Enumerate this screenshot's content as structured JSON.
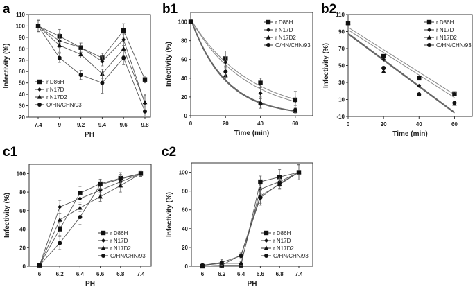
{
  "legend_labels": [
    "r D86H",
    "r N17D",
    "r N17D2",
    "O/HN/CHN/93"
  ],
  "chart_data": [
    {
      "panel": "a",
      "type": "line",
      "xmode": "category",
      "categories": [
        "7.4",
        "9",
        "9.2",
        "9.4",
        "9.6",
        "9.8"
      ],
      "xlabel": "PH",
      "ylabel": "Infectivity (%)",
      "ylim": [
        20,
        110
      ],
      "yticks": [
        20,
        30,
        40,
        50,
        60,
        70,
        80,
        90,
        100,
        110
      ],
      "legend": "bottom-left",
      "series": [
        {
          "name": "r D86H",
          "marker": "square",
          "values": [
            100,
            91,
            81,
            72,
            96,
            53
          ],
          "errors": [
            5,
            6,
            4,
            4,
            6,
            3
          ]
        },
        {
          "name": "r N17D",
          "marker": "diamond",
          "values": [
            100,
            87,
            81,
            69,
            88,
            32
          ],
          "errors": [
            5,
            6,
            4,
            4,
            5,
            7
          ]
        },
        {
          "name": "r N17D2",
          "marker": "triangle",
          "values": [
            100,
            83,
            75,
            58,
            80,
            33
          ],
          "errors": [
            5,
            6,
            3,
            4,
            6,
            7
          ]
        },
        {
          "name": "O/HN/CHN/93",
          "marker": "circle",
          "values": [
            100,
            72,
            57,
            50,
            72,
            25
          ],
          "errors": [
            5,
            4,
            4,
            9,
            6,
            4
          ]
        }
      ]
    },
    {
      "panel": "b1",
      "type": "scatter",
      "xmode": "numeric",
      "x": [
        0,
        20,
        40,
        60
      ],
      "xlim": [
        0,
        70
      ],
      "xticks": [
        0,
        20,
        40,
        60
      ],
      "xlabel": "Time (min)",
      "ylabel": "Infectivity (%)",
      "ylim": [
        0,
        110
      ],
      "yticks": [
        0,
        20,
        40,
        60,
        80,
        100
      ],
      "legend": "top-right",
      "fit": "exponential",
      "series": [
        {
          "name": "r D86H",
          "marker": "square",
          "values": [
            100,
            61,
            35,
            17
          ],
          "errors": [
            0,
            8,
            5,
            9
          ],
          "fit": {
            "a": 103,
            "k": 0.0295
          }
        },
        {
          "name": "r N17D",
          "marker": "diamond",
          "values": [
            100,
            57,
            24,
            16
          ],
          "errors": [
            0,
            6,
            6,
            5
          ],
          "fit": {
            "a": 103,
            "k": 0.032
          }
        },
        {
          "name": "r N17D2",
          "marker": "triangle",
          "values": [
            100,
            43,
            14,
            5
          ],
          "errors": [
            0,
            5,
            6,
            3
          ],
          "fit": {
            "a": 104,
            "k": 0.05
          }
        },
        {
          "name": "O/HN/CHN/93",
          "marker": "circle",
          "values": [
            100,
            47,
            13,
            6
          ],
          "errors": [
            0,
            6,
            5,
            3
          ],
          "fit": {
            "a": 103,
            "k": 0.051
          }
        }
      ]
    },
    {
      "panel": "b2",
      "type": "scatter",
      "xmode": "numeric",
      "x": [
        0,
        20,
        40,
        60
      ],
      "xlim": [
        0,
        70
      ],
      "xticks": [
        0,
        20,
        40,
        60
      ],
      "xlabel": "Time (min)",
      "ylabel": "Infectivity (%)",
      "ylim": [
        -10,
        110
      ],
      "yticks": [
        -10,
        10,
        30,
        50,
        70,
        90,
        110
      ],
      "legend": "top-right",
      "fit": "linear",
      "series": [
        {
          "name": "r D86H",
          "marker": "square",
          "values": [
            100,
            61,
            35,
            17
          ],
          "errors": [
            0,
            0,
            0,
            2
          ],
          "fit": {
            "intercept": 95,
            "slope": -1.32
          }
        },
        {
          "name": "r N17D",
          "marker": "diamond",
          "values": [
            100,
            57,
            26,
            16
          ],
          "errors": [
            0,
            0,
            0,
            2
          ],
          "fit": {
            "intercept": 92,
            "slope": -1.33
          }
        },
        {
          "name": "r N17D2",
          "marker": "triangle",
          "values": [
            100,
            43,
            16,
            5
          ],
          "errors": [
            0,
            2,
            0,
            2
          ],
          "fit": {
            "intercept": 88,
            "slope": -1.55
          }
        },
        {
          "name": "O/HN/CHN/93",
          "marker": "circle",
          "values": [
            100,
            47,
            16,
            6
          ],
          "errors": [
            0,
            2,
            0,
            2
          ],
          "fit": {
            "intercept": 87,
            "slope": -1.55
          }
        }
      ]
    },
    {
      "panel": "c1",
      "type": "line",
      "xmode": "category",
      "categories": [
        "6",
        "6.2",
        "6.4",
        "6.6",
        "6.8",
        "7.4"
      ],
      "xlabel": "PH",
      "ylabel": "Infectivity (%)",
      "ylim": [
        0,
        110
      ],
      "yticks": [
        0,
        20,
        40,
        60,
        80,
        100
      ],
      "legend": "bottom-right",
      "series": [
        {
          "name": "r D86H",
          "marker": "square",
          "values": [
            1,
            40,
            79,
            89,
            95,
            100
          ],
          "errors": [
            1,
            7,
            7,
            5,
            6,
            3
          ]
        },
        {
          "name": "r N17D",
          "marker": "diamond",
          "values": [
            1,
            64,
            73,
            82,
            91,
            100
          ],
          "errors": [
            1,
            7,
            4,
            5,
            5,
            3
          ]
        },
        {
          "name": "r N17D2",
          "marker": "triangle",
          "values": [
            1,
            50,
            63,
            75,
            87,
            100
          ],
          "errors": [
            1,
            7,
            4,
            5,
            7,
            3
          ]
        },
        {
          "name": "O/HN/CHN/93",
          "marker": "circle",
          "values": [
            1,
            25,
            53,
            88,
            94,
            100
          ],
          "errors": [
            1,
            7,
            8,
            5,
            5,
            3
          ]
        }
      ]
    },
    {
      "panel": "c2",
      "type": "line",
      "xmode": "category",
      "categories": [
        "6",
        "6.2",
        "6.4",
        "6.6",
        "6.8",
        "7.4"
      ],
      "xlabel": "PH",
      "ylabel": "Infectivity (%)",
      "ylim": [
        0,
        110
      ],
      "yticks": [
        0,
        20,
        40,
        60,
        80,
        100
      ],
      "legend": "bottom-right",
      "series": [
        {
          "name": "r D86H",
          "marker": "square",
          "values": [
            0,
            1,
            1,
            90,
            95,
            100
          ],
          "errors": [
            1,
            1,
            1,
            6,
            8,
            8
          ]
        },
        {
          "name": "r N17D",
          "marker": "diamond",
          "values": [
            1,
            3,
            3,
            82,
            90,
            100
          ],
          "errors": [
            1,
            2,
            2,
            5,
            5,
            8
          ]
        },
        {
          "name": "r N17D2",
          "marker": "triangle",
          "values": [
            0,
            1,
            12,
            75,
            87,
            100
          ],
          "errors": [
            1,
            1,
            3,
            8,
            5,
            8
          ]
        },
        {
          "name": "O/HN/CHN/93",
          "marker": "circle",
          "values": [
            1,
            4,
            11,
            73,
            88,
            100
          ],
          "errors": [
            1,
            3,
            3,
            8,
            5,
            8
          ]
        }
      ]
    }
  ]
}
